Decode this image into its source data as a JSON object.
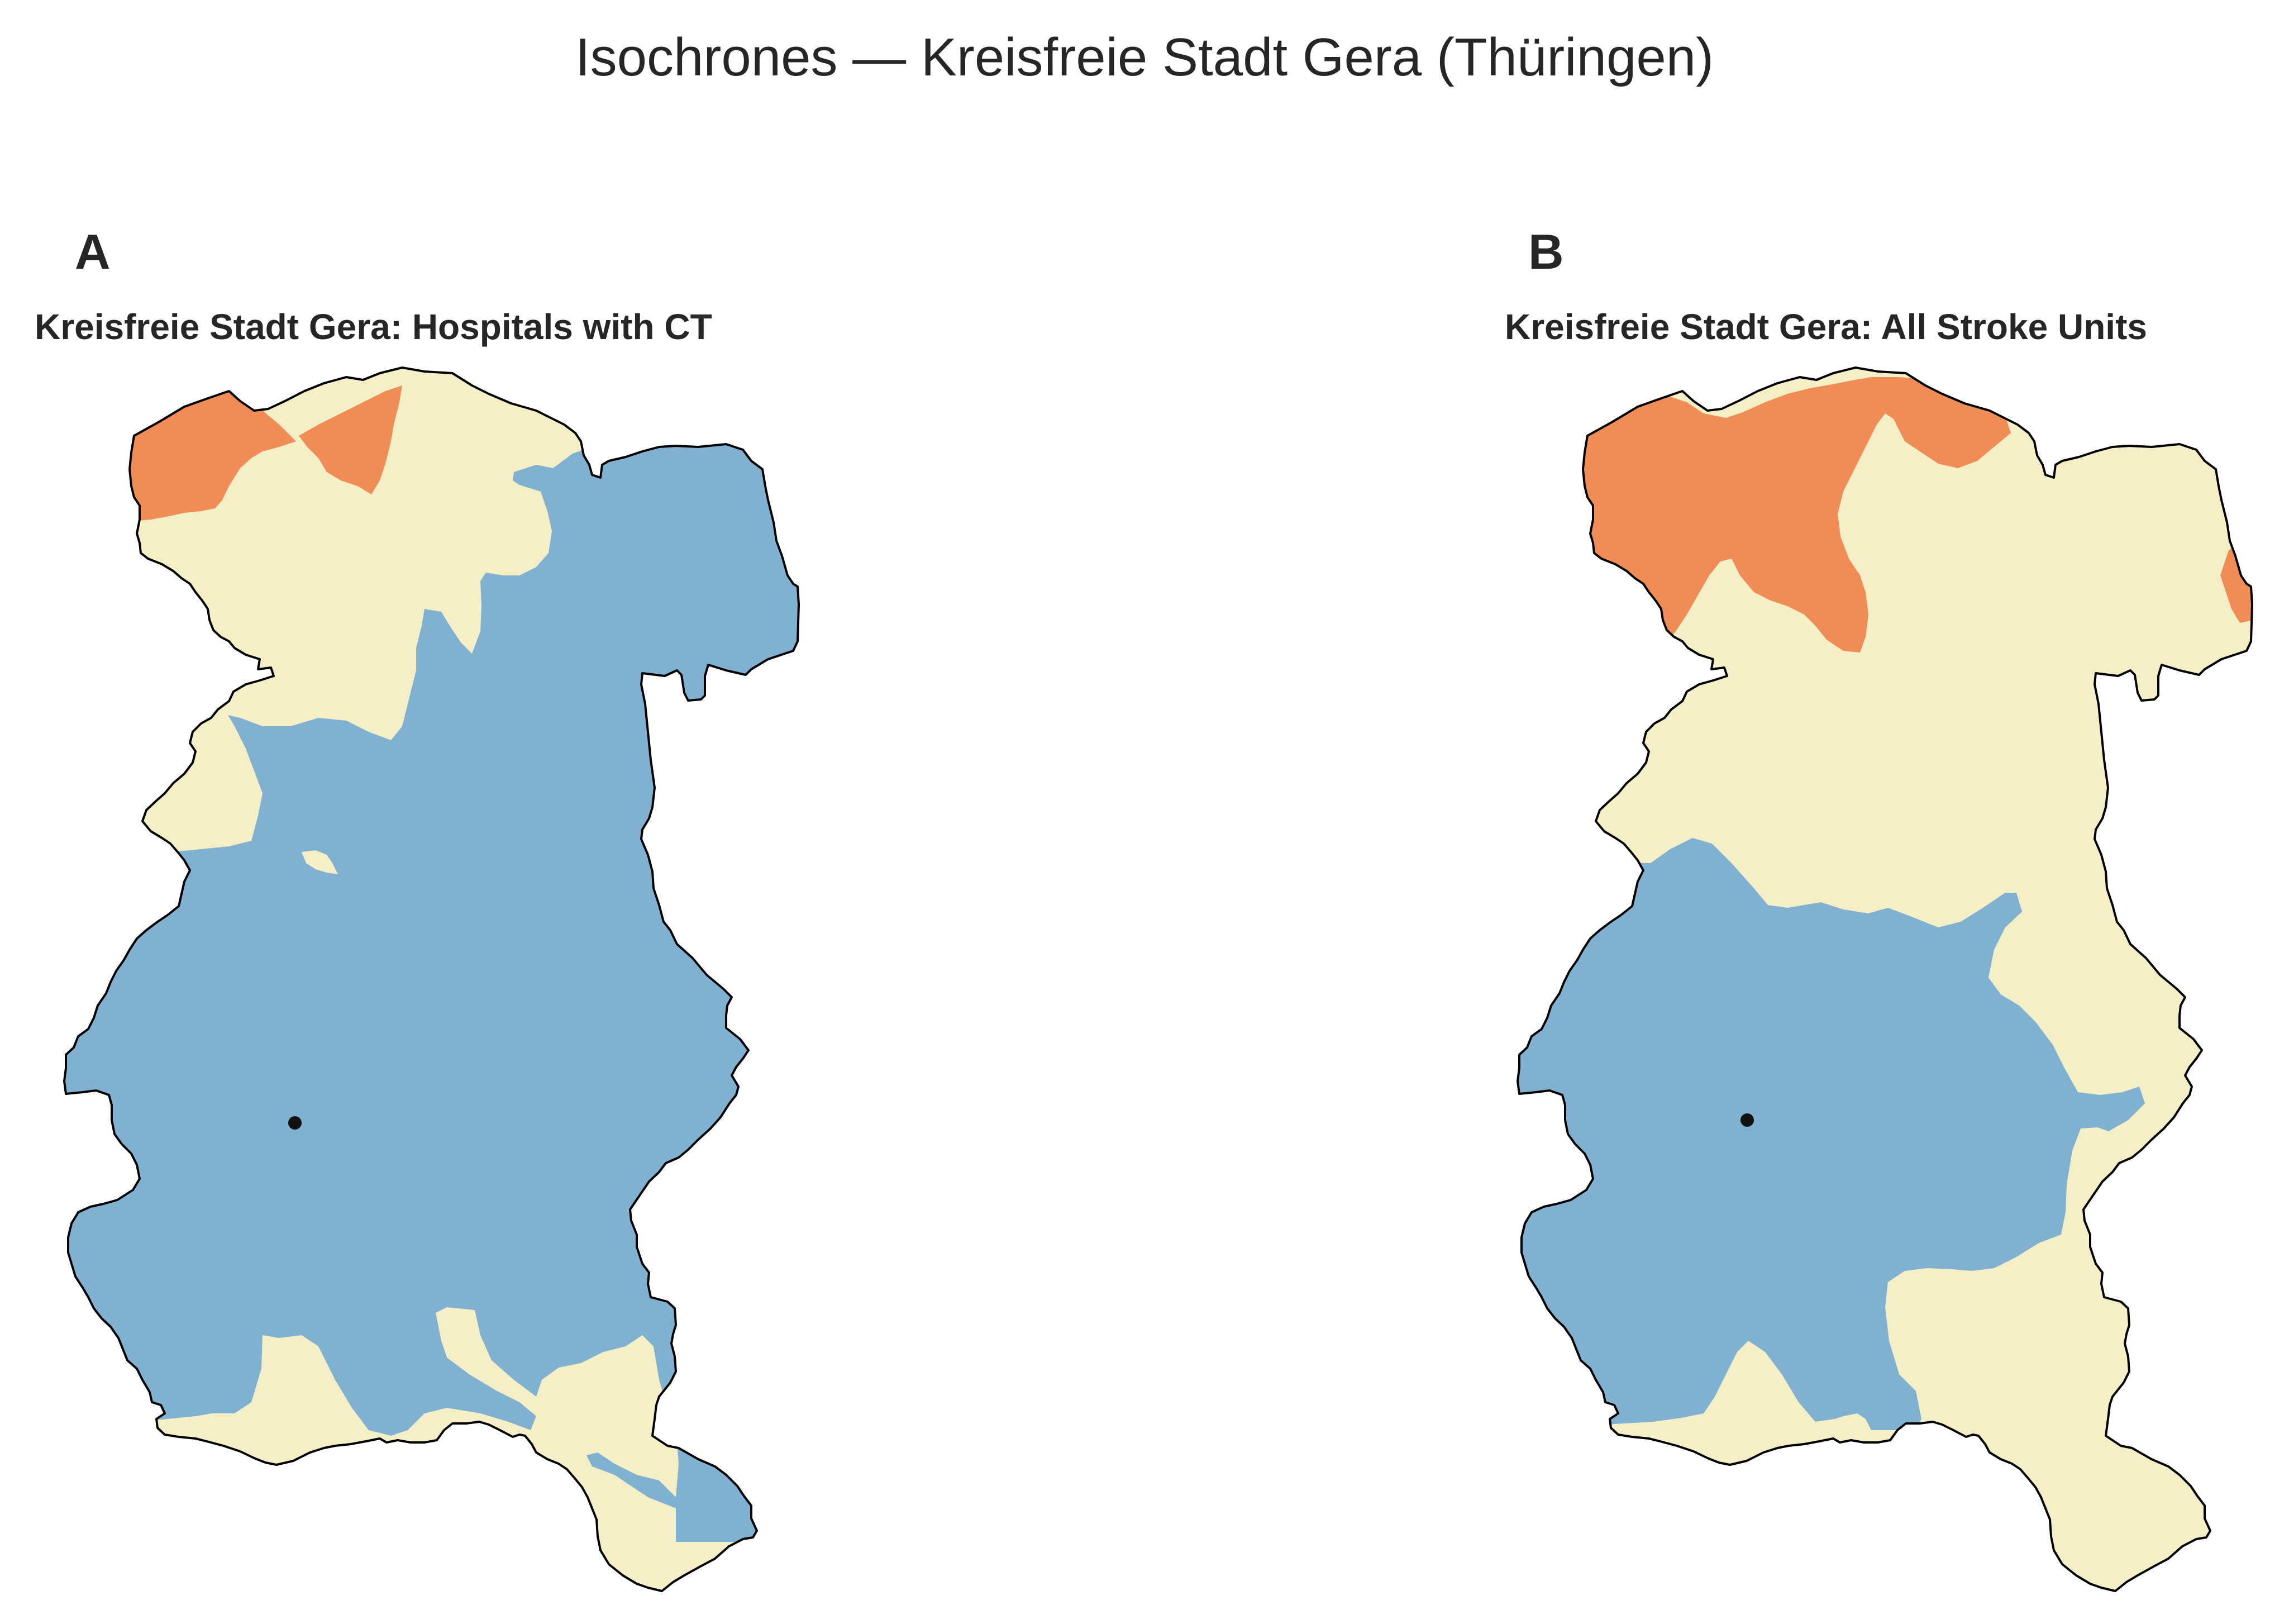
{
  "figure": {
    "title": "Isochrones — Kreisfreie Stadt Gera (Thüringen)"
  },
  "panels": [
    {
      "letter": "A",
      "subtitle": "Kreisfreie Stadt Gera: Hospitals with CT"
    },
    {
      "letter": "B",
      "subtitle": "Kreisfreie Stadt Gera: All Stroke Units"
    }
  ],
  "colors": {
    "near_zone": "#80b1d1",
    "middle_zone": "#f4efc6",
    "far_zone": "#f08d56",
    "boundary": "#000000",
    "facility_marker": "#111111"
  },
  "icons": {
    "facility_marker": "facility-marker-icon"
  }
}
